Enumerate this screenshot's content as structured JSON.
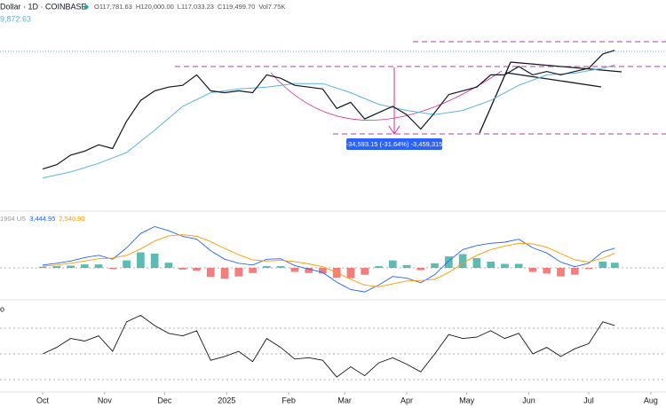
{
  "chart_data": [
    {
      "type": "line",
      "title": "Dollar · 1D · COINBASE",
      "header_values": [
        "O117,781.63",
        "H120,000.00",
        "L117,033.23",
        "C119,499.70",
        "Vol7.75K"
      ],
      "ma_label": "9,872.63",
      "annotation": "-34,593.15 (-31.64%) -3,459,315",
      "log_scale": true,
      "xlim": [
        -21.3,
        311.6
      ],
      "ylim": [
        48800,
        158900
      ],
      "x": [
        0,
        7,
        14,
        21,
        28,
        35,
        42,
        49,
        56,
        63,
        70,
        77,
        84,
        91,
        98,
        105,
        112,
        119,
        126,
        133,
        140,
        147,
        154,
        161,
        168,
        175,
        182,
        189,
        196,
        203,
        210,
        217,
        224,
        231,
        238,
        245,
        252,
        259,
        266,
        273,
        280,
        286
      ],
      "series": [
        {
          "color": "#131722",
          "values": [
            61000,
            62500,
            66000,
            67500,
            70000,
            68500,
            80000,
            90000,
            95000,
            97000,
            98000,
            104000,
            95000,
            94000,
            95000,
            94000,
            104000,
            102000,
            98000,
            97000,
            96000,
            86000,
            89000,
            81000,
            84000,
            87000,
            83000,
            76500,
            84000,
            93000,
            95000,
            97000,
            104000,
            104000,
            109000,
            104000,
            106000,
            104000,
            106000,
            108000,
            117000,
            119500
          ]
        }
      ],
      "ma_x": [
        0,
        14,
        28,
        42,
        56,
        70,
        84,
        98,
        112,
        126,
        140,
        154,
        168,
        182,
        196,
        210,
        224,
        238,
        252,
        266,
        280,
        286
      ],
      "ma_series": {
        "color": "#5ab4e0",
        "values": [
          58000,
          60000,
          63000,
          67000,
          76000,
          87000,
          94000,
          96000,
          97000,
          99000,
          99000,
          94000,
          88000,
          85000,
          83000,
          85000,
          90000,
          98000,
          104000,
          105000,
          108000,
          110000
        ]
      }
    },
    {
      "type": "macd",
      "legend_labels": [
        "1904 US",
        "3,444.95",
        "2,540.90"
      ],
      "xlim": [
        -21.3,
        311.6
      ],
      "ylim": [
        -5115,
        9610
      ],
      "hlines": [
        0
      ],
      "x": [
        0,
        7,
        14,
        21,
        28,
        35,
        42,
        49,
        56,
        63,
        70,
        77,
        84,
        91,
        98,
        105,
        112,
        119,
        126,
        133,
        140,
        147,
        154,
        161,
        168,
        175,
        182,
        189,
        196,
        203,
        210,
        217,
        224,
        231,
        238,
        245,
        252,
        259,
        266,
        273,
        280,
        286
      ],
      "series": [
        {
          "color": "#2962ff",
          "values": [
            500,
            800,
            1200,
            1800,
            2200,
            1500,
            3500,
            6000,
            7200,
            6500,
            5500,
            5000,
            3000,
            1500,
            800,
            500,
            1500,
            1600,
            400,
            -200,
            -800,
            -2500,
            -3800,
            -4200,
            -3000,
            -1500,
            -1800,
            -2600,
            -1200,
            1200,
            3200,
            3900,
            4300,
            4500,
            5000,
            3500,
            2600,
            1000,
            200,
            800,
            2800,
            3445
          ]
        },
        {
          "color": "#ff9800",
          "values": [
            300,
            500,
            800,
            1200,
            1600,
            1700,
            2200,
            3300,
            4700,
            5600,
            5800,
            5500,
            4600,
            3400,
            2300,
            1400,
            1200,
            1300,
            1100,
            700,
            200,
            -800,
            -2000,
            -3000,
            -3300,
            -2800,
            -2300,
            -2200,
            -2000,
            -800,
            800,
            2200,
            3200,
            3800,
            4300,
            4200,
            3600,
            2500,
            1400,
            1000,
            1700,
            2541
          ]
        }
      ],
      "histogram": {
        "colors": [
          "#26a69a",
          "#ef5350"
        ],
        "values": [
          200,
          300,
          400,
          600,
          600,
          -200,
          1300,
          2700,
          2500,
          900,
          -300,
          -500,
          -1600,
          -1900,
          -1500,
          -900,
          300,
          300,
          -700,
          -900,
          -1000,
          -1700,
          -1800,
          -1200,
          300,
          1300,
          500,
          -400,
          800,
          2000,
          2400,
          1700,
          1100,
          700,
          700,
          -700,
          -1000,
          -1500,
          -1200,
          -200,
          1100,
          904
        ]
      }
    },
    {
      "type": "rsi",
      "xlim": [
        -21.3,
        311.6
      ],
      "ylim": [
        21.7,
        90.7
      ],
      "hlines": [
        70,
        50,
        30
      ],
      "x": [
        0,
        7,
        14,
        21,
        28,
        35,
        42,
        49,
        56,
        63,
        70,
        77,
        84,
        91,
        98,
        105,
        112,
        119,
        126,
        133,
        140,
        147,
        154,
        161,
        168,
        175,
        182,
        189,
        196,
        203,
        210,
        217,
        224,
        231,
        238,
        245,
        252,
        259,
        266,
        273,
        280,
        286
      ],
      "series": [
        {
          "color": "#131722",
          "values": [
            50,
            55,
            62,
            60,
            64,
            52,
            75,
            80,
            72,
            66,
            64,
            68,
            45,
            48,
            52,
            44,
            62,
            55,
            46,
            47,
            45,
            32,
            40,
            33,
            43,
            47,
            42,
            36,
            50,
            65,
            62,
            63,
            68,
            62,
            66,
            50,
            55,
            48,
            54,
            58,
            75,
            72
          ]
        }
      ],
      "xticks": [
        {
          "value": 0,
          "label": "Oct"
        },
        {
          "value": 31,
          "label": "Nov"
        },
        {
          "value": 61,
          "label": "Dec"
        },
        {
          "value": 92,
          "label": "2025"
        },
        {
          "value": 123,
          "label": "Feb"
        },
        {
          "value": 151,
          "label": "Mar"
        },
        {
          "value": 182,
          "label": "Apr"
        },
        {
          "value": 212,
          "label": "May"
        },
        {
          "value": 243,
          "label": "Jun"
        },
        {
          "value": 273,
          "label": "Jul"
        },
        {
          "value": 304,
          "label": "Aug"
        }
      ]
    }
  ]
}
